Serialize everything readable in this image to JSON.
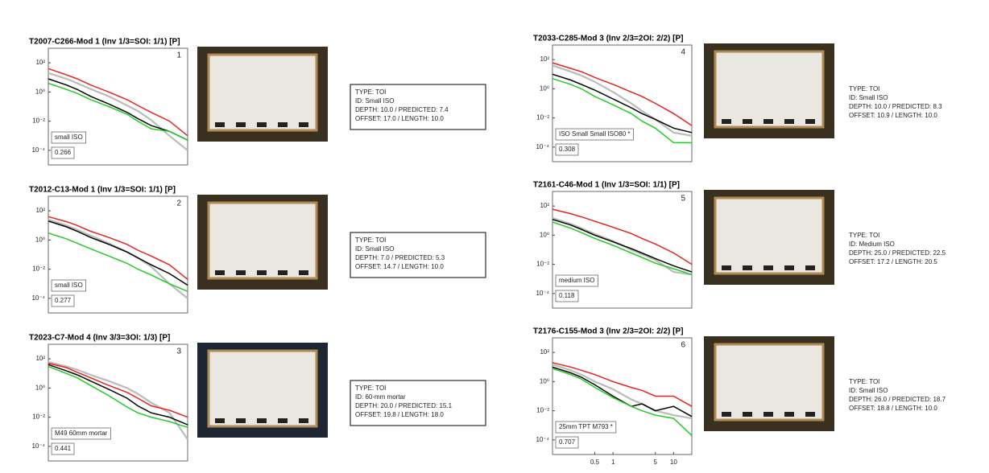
{
  "chart_data": [
    {
      "type": "line",
      "title": "T2007-C266-Mod 1 (Inv 1/3=SOI: 1/1) [P]",
      "panel_number": 1,
      "class_label": "small ISO",
      "score": 0.266,
      "info": [
        "TYPE: TOI",
        "ID: Small ISO",
        "DEPTH: 10.0 / PREDICTED: 7.4",
        "OFFSET: 17.0 / LENGTH: 10.0"
      ],
      "log_x": true,
      "log_y": true,
      "xlim": [
        0.1,
        20
      ],
      "ylim": [
        1e-05,
        1000
      ],
      "yticks": [
        {
          "value": 0.0001,
          "label": "10⁻⁴"
        },
        {
          "value": 0.01,
          "label": "10⁻²"
        },
        {
          "value": 1,
          "label": "10⁰"
        },
        {
          "value": 100,
          "label": "10²"
        }
      ],
      "x": [
        0.1,
        0.2,
        0.3,
        0.5,
        1,
        2,
        3,
        5,
        10,
        20
      ],
      "series": [
        {
          "color": "#bbbbbb",
          "values": [
            20,
            8,
            4,
            1.6,
            0.5,
            0.12,
            0.05,
            0.012,
            0.001,
            0.0001
          ]
        },
        {
          "color": "#000000",
          "values": [
            8,
            3,
            1.5,
            0.5,
            0.15,
            0.04,
            0.015,
            0.005,
            0.002,
            0.0005
          ]
        },
        {
          "color": "#e8231f",
          "values": [
            40,
            15,
            8,
            3,
            1,
            0.3,
            0.12,
            0.04,
            0.01,
            0.001
          ]
        },
        {
          "color": "#22cc22",
          "values": [
            4,
            1.5,
            0.8,
            0.3,
            0.1,
            0.03,
            0.01,
            0.003,
            0.002,
            0.0005
          ]
        }
      ]
    },
    {
      "type": "line",
      "title": "T2012-C13-Mod 1 (Inv 1/3=SOI: 1/1) [P]",
      "panel_number": 2,
      "class_label": "small ISO",
      "score": 0.277,
      "info": [
        "TYPE: TOI",
        "ID: Small ISO",
        "DEPTH: 7.0 / PREDICTED: 5.3",
        "OFFSET: 14.7 / LENGTH: 10.0"
      ],
      "log_x": true,
      "log_y": true,
      "xlim": [
        0.1,
        20
      ],
      "ylim": [
        1e-05,
        1000
      ],
      "yticks": [
        {
          "value": 0.0001,
          "label": "10⁻⁴"
        },
        {
          "value": 0.01,
          "label": "10⁻²"
        },
        {
          "value": 1,
          "label": "10⁰"
        },
        {
          "value": 100,
          "label": "10²"
        }
      ],
      "x": [
        0.1,
        0.2,
        0.3,
        0.5,
        1,
        2,
        3,
        5,
        10,
        20
      ],
      "series": [
        {
          "color": "#bbbbbb",
          "values": [
            25,
            10,
            5,
            2,
            0.6,
            0.15,
            0.06,
            0.015,
            0.001,
            0.0001
          ]
        },
        {
          "color": "#000000",
          "values": [
            20,
            8,
            4,
            1.5,
            0.5,
            0.15,
            0.06,
            0.02,
            0.005,
            0.0008
          ]
        },
        {
          "color": "#e8231f",
          "values": [
            40,
            18,
            10,
            4,
            1.5,
            0.5,
            0.2,
            0.08,
            0.02,
            0.002
          ]
        },
        {
          "color": "#22cc22",
          "values": [
            3,
            1.2,
            0.6,
            0.25,
            0.08,
            0.025,
            0.01,
            0.004,
            0.001,
            0.0003
          ]
        }
      ]
    },
    {
      "type": "line",
      "title": "T2023-C7-Mod 4 (Inv 3/3=3OI: 1/3) [P]",
      "panel_number": 3,
      "class_label": "M49 60mm mortar",
      "score": 0.441,
      "info": [
        "TYPE: TOI",
        "ID: 60-mm mortar",
        "DEPTH: 20.0 / PREDICTED: 15.1",
        "OFFSET: 19.8 / LENGTH: 18.0"
      ],
      "log_x": true,
      "log_y": true,
      "xlim": [
        0.1,
        20
      ],
      "ylim": [
        1e-05,
        1000
      ],
      "yticks": [
        {
          "value": 0.0001,
          "label": "10⁻⁴"
        },
        {
          "value": 0.01,
          "label": "10⁻²"
        },
        {
          "value": 1,
          "label": "10⁰"
        },
        {
          "value": 100,
          "label": "10²"
        }
      ],
      "x": [
        0.1,
        0.2,
        0.3,
        0.5,
        1,
        2,
        3,
        5,
        10,
        20
      ],
      "series": [
        {
          "color": "#bbbbbb",
          "values": [
            60,
            30,
            18,
            8,
            3,
            1,
            0.4,
            0.1,
            0.02,
            0.0003
          ]
        },
        {
          "color": "#000000",
          "values": [
            40,
            15,
            8,
            3,
            0.8,
            0.2,
            0.06,
            0.02,
            0.01,
            0.003
          ]
        },
        {
          "color": "#e8231f",
          "values": [
            50,
            25,
            12,
            5,
            1.5,
            0.5,
            0.2,
            0.06,
            0.03,
            0.01
          ]
        },
        {
          "color": "#22cc22",
          "values": [
            30,
            10,
            5,
            1.5,
            0.3,
            0.05,
            0.02,
            0.01,
            0.005,
            0.002
          ]
        }
      ]
    },
    {
      "type": "line",
      "title": "T2033-C285-Mod 3 (Inv 2/3=2OI: 2/2) [P]",
      "panel_number": 4,
      "class_label": "ISO Small Small ISO80 *",
      "score": 0.308,
      "info": [
        "TYPE: TOI",
        "ID: Small ISO",
        "DEPTH: 10.0 / PREDICTED: 8.3",
        "OFFSET: 10.9 / LENGTH: 10.0"
      ],
      "log_x": true,
      "log_y": true,
      "xlim": [
        0.1,
        20
      ],
      "ylim": [
        1e-05,
        1000
      ],
      "yticks": [
        {
          "value": 0.0001,
          "label": "10⁻⁴"
        },
        {
          "value": 0.01,
          "label": "10⁻²"
        },
        {
          "value": 1,
          "label": "10⁰"
        },
        {
          "value": 100,
          "label": "10²"
        }
      ],
      "x": [
        0.1,
        0.2,
        0.3,
        0.5,
        1,
        2,
        3,
        5,
        10,
        20
      ],
      "series": [
        {
          "color": "#bbbbbb",
          "values": [
            40,
            15,
            8,
            3,
            0.6,
            0.1,
            0.03,
            0.008,
            0.001,
            0.0006
          ]
        },
        {
          "color": "#000000",
          "values": [
            10,
            4,
            2,
            0.8,
            0.2,
            0.05,
            0.02,
            0.008,
            0.002,
            0.001
          ]
        },
        {
          "color": "#e8231f",
          "values": [
            60,
            25,
            15,
            6,
            2,
            0.6,
            0.3,
            0.1,
            0.02,
            0.003
          ]
        },
        {
          "color": "#22cc22",
          "values": [
            5,
            2,
            1,
            0.3,
            0.08,
            0.02,
            0.006,
            0.002,
            0.0002,
            0.0002
          ]
        }
      ]
    },
    {
      "type": "line",
      "title": "T2161-C46-Mod 1 (Inv 1/3=SOI: 1/1) [P]",
      "panel_number": 5,
      "class_label": "medium ISO",
      "score": 0.118,
      "info": [
        "TYPE: TOI",
        "ID: Medium ISO",
        "DEPTH: 25.0 / PREDICTED: 22.5",
        "OFFSET: 17.2 / LENGTH: 20.5"
      ],
      "log_x": true,
      "log_y": true,
      "xlim": [
        0.1,
        20
      ],
      "ylim": [
        1e-05,
        1000
      ],
      "yticks": [
        {
          "value": 0.0001,
          "label": "10⁻⁴"
        },
        {
          "value": 0.01,
          "label": "10⁻²"
        },
        {
          "value": 1,
          "label": "10⁰"
        },
        {
          "value": 100,
          "label": "10²"
        }
      ],
      "x": [
        0.1,
        0.2,
        0.3,
        0.5,
        1,
        2,
        3,
        5,
        10,
        20
      ],
      "series": [
        {
          "color": "#bbbbbb",
          "values": [
            15,
            6,
            3,
            1.2,
            0.4,
            0.1,
            0.05,
            0.02,
            0.003,
            0.002
          ]
        },
        {
          "color": "#000000",
          "values": [
            12,
            5,
            2.5,
            1,
            0.35,
            0.12,
            0.06,
            0.025,
            0.008,
            0.003
          ]
        },
        {
          "color": "#e8231f",
          "values": [
            60,
            30,
            18,
            9,
            3.5,
            1.3,
            0.6,
            0.25,
            0.06,
            0.01
          ]
        },
        {
          "color": "#22cc22",
          "values": [
            8,
            3,
            1.5,
            0.6,
            0.2,
            0.06,
            0.03,
            0.012,
            0.005,
            0.002
          ]
        }
      ]
    },
    {
      "type": "line",
      "title": "T2176-C155-Mod 3 (Inv 2/3=2OI: 2/2) [P]",
      "panel_number": 6,
      "class_label": "25mm TPT M793 *",
      "score": 0.707,
      "info": [
        "TYPE: TOI",
        "ID: Small ISO",
        "DEPTH: 26.0 / PREDICTED: 18.7",
        "OFFSET: 18.8 / LENGTH: 10.0"
      ],
      "log_x": true,
      "log_y": true,
      "xlim": [
        0.1,
        20
      ],
      "ylim": [
        1e-05,
        1000
      ],
      "xticks": [
        0.5,
        1,
        5,
        10
      ],
      "yticks": [
        {
          "value": 0.0001,
          "label": "10⁻⁴"
        },
        {
          "value": 0.01,
          "label": "10⁻²"
        },
        {
          "value": 1,
          "label": "10⁰"
        },
        {
          "value": 100,
          "label": "10²"
        }
      ],
      "x": [
        0.1,
        0.2,
        0.3,
        0.5,
        1,
        2,
        3,
        5,
        10,
        20
      ],
      "series": [
        {
          "color": "#bbbbbb",
          "values": [
            15,
            6,
            3,
            1,
            0.3,
            0.06,
            0.03,
            0.01,
            0.005,
            0.003
          ]
        },
        {
          "color": "#000000",
          "values": [
            10,
            4,
            2,
            0.6,
            0.1,
            0.02,
            0.03,
            0.01,
            0.02,
            0.004
          ]
        },
        {
          "color": "#e8231f",
          "values": [
            20,
            10,
            6,
            3,
            1,
            0.4,
            0.25,
            0.1,
            0.1,
            0.02
          ]
        },
        {
          "color": "#22cc22",
          "values": [
            8,
            3,
            1.5,
            0.4,
            0.08,
            0.02,
            0.01,
            0.005,
            0.003,
            0.0002
          ]
        }
      ]
    }
  ]
}
